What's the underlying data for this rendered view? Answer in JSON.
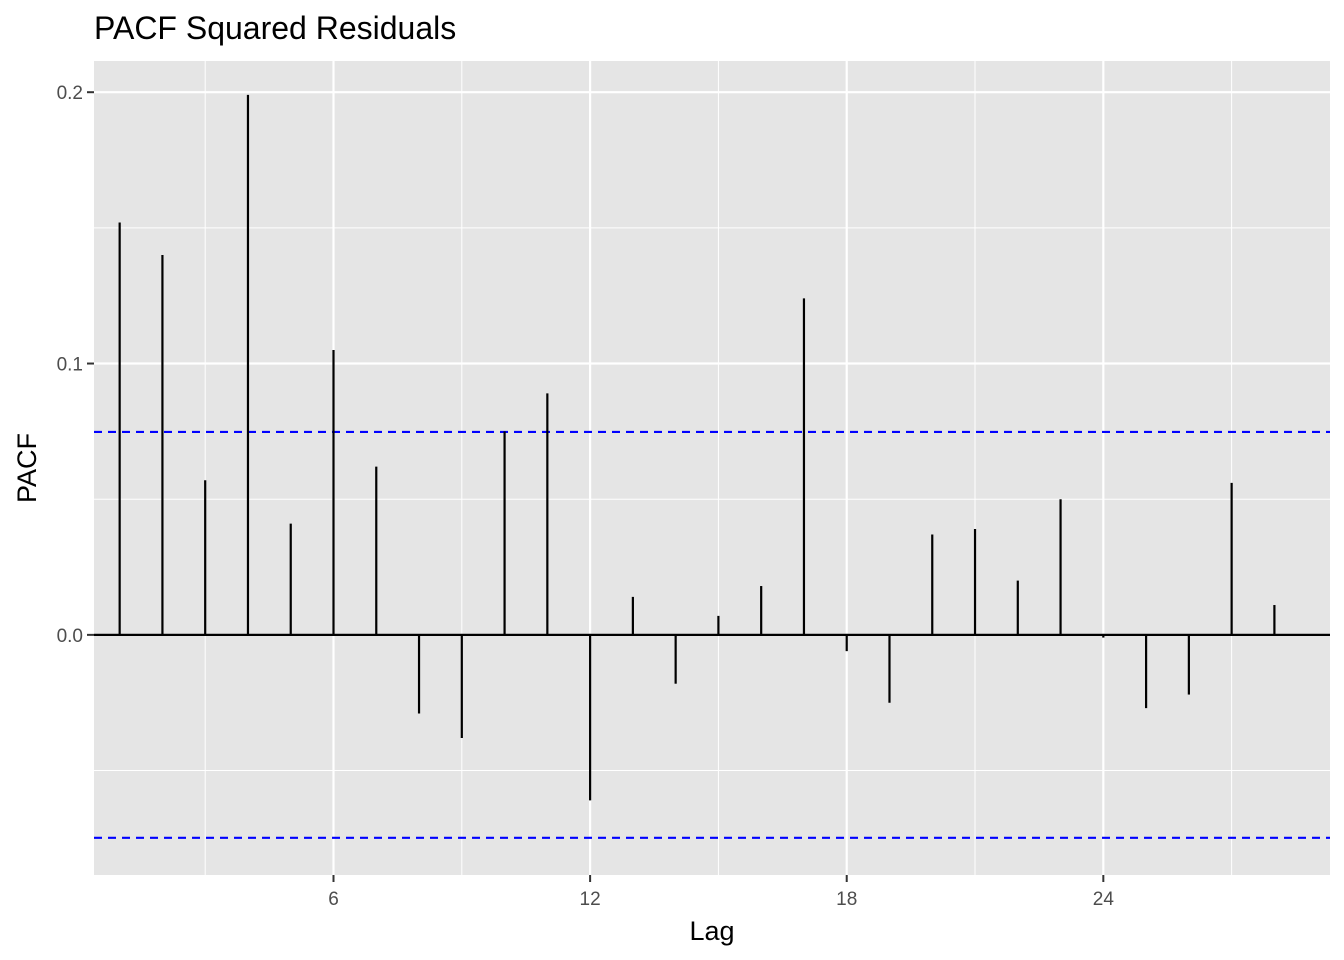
{
  "chart_data": {
    "type": "bar",
    "title": "PACF Squared Residuals",
    "xlabel": "Lag",
    "ylabel": "PACF",
    "x": [
      1,
      2,
      3,
      4,
      5,
      6,
      7,
      8,
      9,
      10,
      11,
      12,
      13,
      14,
      15,
      16,
      17,
      18,
      19,
      20,
      21,
      22,
      23,
      24,
      25,
      26,
      27,
      28
    ],
    "values": [
      0.152,
      0.14,
      0.057,
      0.199,
      0.041,
      0.105,
      0.062,
      -0.029,
      -0.038,
      0.075,
      0.089,
      -0.061,
      0.014,
      -0.018,
      0.007,
      0.018,
      0.124,
      -0.006,
      -0.025,
      0.037,
      0.039,
      0.02,
      0.05,
      -0.001,
      -0.027,
      -0.022,
      0.056,
      0.011
    ],
    "confidence_bands": [
      0.0748,
      -0.0748
    ],
    "xlim": [
      0.4,
      29.3
    ],
    "ylim": [
      -0.0885,
      0.2115
    ],
    "xticks": [
      6,
      12,
      18,
      24
    ],
    "xtick_labels": [
      "6",
      "12",
      "18",
      "24"
    ],
    "yticks": [
      0.0,
      0.1,
      0.2
    ],
    "ytick_labels": [
      "0.0",
      "0.1",
      "0.2"
    ],
    "grid": true,
    "colors": {
      "panel": "#e5e5e5",
      "grid": "#ffffff",
      "bars": "#000000",
      "bands": "#0000ff"
    }
  }
}
